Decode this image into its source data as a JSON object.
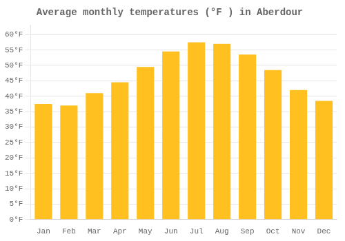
{
  "chart_data": {
    "type": "bar",
    "title": "Average monthly temperatures (°F ) in Aberdour",
    "categories": [
      "Jan",
      "Feb",
      "Mar",
      "Apr",
      "May",
      "Jun",
      "Jul",
      "Aug",
      "Sep",
      "Oct",
      "Nov",
      "Dec"
    ],
    "values": [
      37.5,
      37.0,
      41.0,
      44.5,
      49.5,
      54.5,
      57.5,
      57.0,
      53.5,
      48.5,
      42.0,
      38.5
    ],
    "color": "#FFC020",
    "ylim": [
      0,
      63
    ],
    "yticks": [
      {
        "value": 0,
        "label": "0°F"
      },
      {
        "value": 5,
        "label": "5°F"
      },
      {
        "value": 10,
        "label": "10°F"
      },
      {
        "value": 15,
        "label": "15°F"
      },
      {
        "value": 20,
        "label": "20°F"
      },
      {
        "value": 25,
        "label": "25°F"
      },
      {
        "value": 30,
        "label": "30°F"
      },
      {
        "value": 35,
        "label": "35°F"
      },
      {
        "value": 40,
        "label": "40°F"
      },
      {
        "value": 45,
        "label": "45°F"
      },
      {
        "value": 50,
        "label": "50°F"
      },
      {
        "value": 55,
        "label": "55°F"
      },
      {
        "value": 60,
        "label": "60°F"
      }
    ],
    "grid": true
  }
}
